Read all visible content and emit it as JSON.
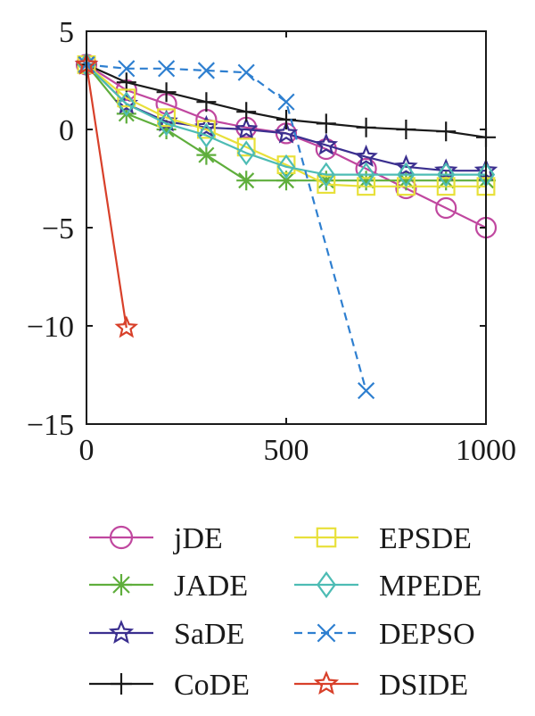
{
  "chart_data": {
    "type": "line",
    "title": "",
    "xlabel": "",
    "ylabel": "",
    "xlim": [
      0,
      1000
    ],
    "ylim": [
      -15,
      5
    ],
    "x_ticks": [
      0,
      500,
      1000
    ],
    "x_tick_labels": [
      "0",
      "500",
      "1000"
    ],
    "y_ticks": [
      -15,
      -10,
      -5,
      0,
      5
    ],
    "y_tick_labels": [
      "−15",
      "−10",
      "−5",
      "0",
      "5"
    ],
    "grid": false,
    "legend_position": "below",
    "series": [
      {
        "name": "jDE",
        "color": "#c0479f",
        "marker": "circle",
        "dash": "solid",
        "x": [
          0,
          100,
          200,
          300,
          400,
          500,
          600,
          700,
          800,
          900,
          1000
        ],
        "y": [
          3.3,
          2.0,
          1.3,
          0.5,
          0.1,
          -0.2,
          -1.0,
          -2.0,
          -3.0,
          -4.0,
          -5.0
        ]
      },
      {
        "name": "JADE",
        "color": "#5fae3c",
        "marker": "asterisk",
        "dash": "solid",
        "x": [
          0,
          100,
          200,
          300,
          400,
          500,
          600,
          700,
          800,
          900,
          1000
        ],
        "y": [
          3.3,
          0.8,
          0.0,
          -1.3,
          -2.6,
          -2.6,
          -2.6,
          -2.6,
          -2.6,
          -2.6,
          -2.6
        ]
      },
      {
        "name": "SaDE",
        "color": "#3b2f8f",
        "marker": "star",
        "dash": "solid",
        "x": [
          0,
          100,
          200,
          300,
          400,
          500,
          600,
          700,
          800,
          900,
          1000
        ],
        "y": [
          3.3,
          1.3,
          0.4,
          0.1,
          0.0,
          -0.2,
          -0.8,
          -1.4,
          -1.9,
          -2.1,
          -2.1
        ]
      },
      {
        "name": "CoDE",
        "color": "#1a1a1a",
        "marker": "plus",
        "dash": "solid",
        "x": [
          0,
          100,
          200,
          300,
          400,
          500,
          600,
          700,
          800,
          900,
          1000
        ],
        "y": [
          3.3,
          2.4,
          1.9,
          1.4,
          0.9,
          0.5,
          0.3,
          0.1,
          0.0,
          -0.1,
          -0.4
        ]
      },
      {
        "name": "EPSDE",
        "color": "#e8e03a",
        "marker": "square",
        "dash": "solid",
        "x": [
          0,
          100,
          200,
          300,
          400,
          500,
          600,
          700,
          800,
          900,
          1000
        ],
        "y": [
          3.3,
          1.6,
          0.6,
          0.0,
          -0.9,
          -1.8,
          -2.8,
          -2.9,
          -2.9,
          -2.9,
          -2.9
        ]
      },
      {
        "name": "MPEDE",
        "color": "#4dbcb4",
        "marker": "diamond",
        "dash": "solid",
        "x": [
          0,
          100,
          200,
          300,
          400,
          500,
          600,
          700,
          800,
          900,
          1000
        ],
        "y": [
          3.3,
          1.3,
          0.3,
          -0.3,
          -1.2,
          -1.9,
          -2.3,
          -2.3,
          -2.3,
          -2.3,
          -2.3
        ]
      },
      {
        "name": "DEPSO",
        "color": "#2e7fd0",
        "marker": "x",
        "dash": "dashed",
        "x": [
          0,
          100,
          200,
          300,
          400,
          500,
          700
        ],
        "y": [
          3.3,
          3.1,
          3.1,
          3.0,
          2.9,
          1.4,
          -13.3
        ]
      },
      {
        "name": "DSIDE",
        "color": "#d8402a",
        "marker": "star",
        "dash": "solid",
        "x": [
          0,
          100
        ],
        "y": [
          3.3,
          -10.1
        ]
      }
    ]
  }
}
